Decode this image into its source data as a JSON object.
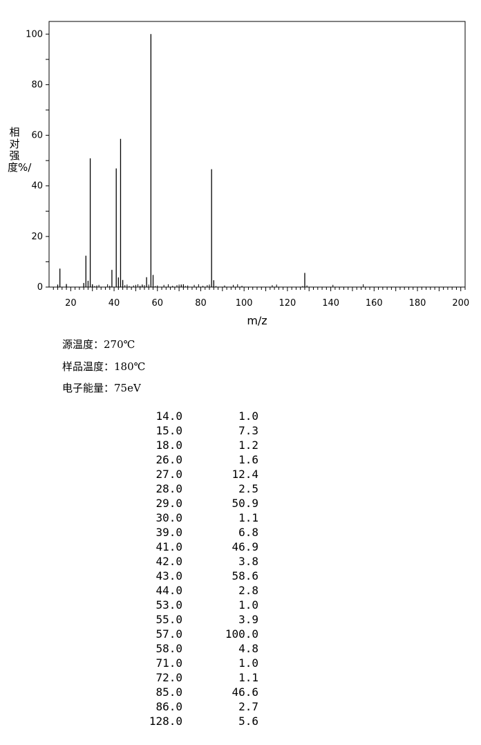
{
  "chart_data": {
    "type": "bar",
    "xlabel": "m/z",
    "ylabel": "相对强度%/",
    "xlim": [
      10,
      202
    ],
    "ylim": [
      0,
      105
    ],
    "xticks": [
      20,
      40,
      60,
      80,
      100,
      120,
      140,
      160,
      180,
      200
    ],
    "yticks": [
      0,
      20,
      40,
      60,
      80,
      100
    ],
    "grid": false,
    "peaks": [
      {
        "mz": 14.0,
        "intensity": 1.0
      },
      {
        "mz": 15.0,
        "intensity": 7.3
      },
      {
        "mz": 18.0,
        "intensity": 1.2
      },
      {
        "mz": 26.0,
        "intensity": 1.6
      },
      {
        "mz": 27.0,
        "intensity": 12.4
      },
      {
        "mz": 28.0,
        "intensity": 2.5
      },
      {
        "mz": 29.0,
        "intensity": 50.9
      },
      {
        "mz": 30.0,
        "intensity": 1.1
      },
      {
        "mz": 39.0,
        "intensity": 6.8
      },
      {
        "mz": 41.0,
        "intensity": 46.9
      },
      {
        "mz": 42.0,
        "intensity": 3.8
      },
      {
        "mz": 43.0,
        "intensity": 58.6
      },
      {
        "mz": 44.0,
        "intensity": 2.8
      },
      {
        "mz": 53.0,
        "intensity": 1.0
      },
      {
        "mz": 55.0,
        "intensity": 3.9
      },
      {
        "mz": 57.0,
        "intensity": 100.0
      },
      {
        "mz": 58.0,
        "intensity": 4.8
      },
      {
        "mz": 71.0,
        "intensity": 1.0
      },
      {
        "mz": 72.0,
        "intensity": 1.1
      },
      {
        "mz": 85.0,
        "intensity": 46.6
      },
      {
        "mz": 86.0,
        "intensity": 2.7
      },
      {
        "mz": 128.0,
        "intensity": 5.6
      }
    ]
  },
  "conditions": [
    "源温度：270℃",
    "样品温度：180℃",
    "电子能量：75eV"
  ],
  "peak_table": [
    {
      "mz": "14.0",
      "intensity": "1.0"
    },
    {
      "mz": "15.0",
      "intensity": "7.3"
    },
    {
      "mz": "18.0",
      "intensity": "1.2"
    },
    {
      "mz": "26.0",
      "intensity": "1.6"
    },
    {
      "mz": "27.0",
      "intensity": "12.4"
    },
    {
      "mz": "28.0",
      "intensity": "2.5"
    },
    {
      "mz": "29.0",
      "intensity": "50.9"
    },
    {
      "mz": "30.0",
      "intensity": "1.1"
    },
    {
      "mz": "39.0",
      "intensity": "6.8"
    },
    {
      "mz": "41.0",
      "intensity": "46.9"
    },
    {
      "mz": "42.0",
      "intensity": "3.8"
    },
    {
      "mz": "43.0",
      "intensity": "58.6"
    },
    {
      "mz": "44.0",
      "intensity": "2.8"
    },
    {
      "mz": "53.0",
      "intensity": "1.0"
    },
    {
      "mz": "55.0",
      "intensity": "3.9"
    },
    {
      "mz": "57.0",
      "intensity": "100.0"
    },
    {
      "mz": "58.0",
      "intensity": "4.8"
    },
    {
      "mz": "71.0",
      "intensity": "1.0"
    },
    {
      "mz": "72.0",
      "intensity": "1.1"
    },
    {
      "mz": "85.0",
      "intensity": "46.6"
    },
    {
      "mz": "86.0",
      "intensity": "2.7"
    },
    {
      "mz": "128.0",
      "intensity": "5.6"
    }
  ]
}
